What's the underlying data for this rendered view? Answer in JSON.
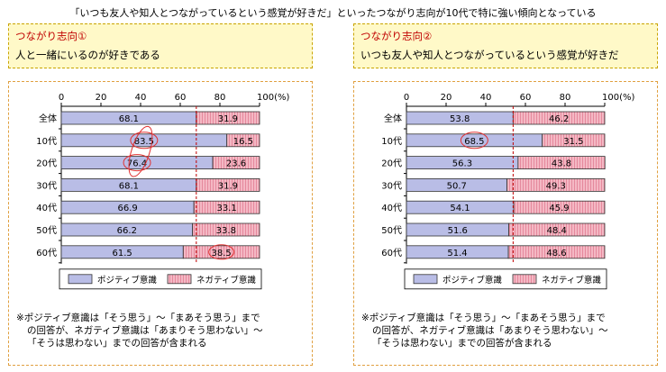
{
  "title": "「いつも友人や知人とつながっているという感覚が好きだ」といったつながり志向が10代で特に強い傾向となっている",
  "panels": [
    {
      "tag": "つながり志向①",
      "description": "人と一緒にいるのが好きである",
      "note_line1": "※ポジティブ意識は「そう思う」～「まあそう思う」まで",
      "note_line2": "の回答が、ネガティブ意識は「あまりそう思わない」～",
      "note_line3": "「そうは思わない」までの回答が含まれる"
    },
    {
      "tag": "つながり志向②",
      "description": "いつも友人や知人とつながっているという感覚が好きだ",
      "note_line1": "※ポジティブ意識は「そう思う」～「まあそう思う」まで",
      "note_line2": "の回答が、ネガティブ意識は「あまりそう思わない」～",
      "note_line3": "「そうは思わない」までの回答が含まれる"
    }
  ],
  "legend": {
    "positive": "ポジティブ意識",
    "negative": "ネガティブ意識"
  },
  "colors": {
    "positive": "#b9bde6",
    "negative": "#f4b8c4",
    "marker": "#e03030",
    "box_border": "#c9a400",
    "box_fill": "#fff9c8",
    "panel_border": "#e0a040"
  },
  "chart_data": [
    {
      "type": "bar",
      "orientation": "horizontal",
      "stacked": true,
      "x_ticks": [
        "0",
        "20",
        "40",
        "60",
        "80",
        "100(%)"
      ],
      "xlim": [
        0,
        100
      ],
      "categories": [
        "全体",
        "10代",
        "20代",
        "30代",
        "40代",
        "50代",
        "60代"
      ],
      "series": [
        {
          "name": "ポジティブ意識",
          "values": [
            68.1,
            83.5,
            76.4,
            68.1,
            66.9,
            66.2,
            61.5
          ]
        },
        {
          "name": "ネガティブ意識",
          "values": [
            31.9,
            16.5,
            23.6,
            31.9,
            33.1,
            33.8,
            38.5
          ]
        }
      ],
      "reference_line": 68.1,
      "highlighted": [
        {
          "category": "10代",
          "series": "ポジティブ意識"
        },
        {
          "category": "20代",
          "series": "ポジティブ意識"
        },
        {
          "category": "60代",
          "series": "ネガティブ意識"
        }
      ]
    },
    {
      "type": "bar",
      "orientation": "horizontal",
      "stacked": true,
      "x_ticks": [
        "0",
        "20",
        "40",
        "60",
        "80",
        "100(%)"
      ],
      "xlim": [
        0,
        100
      ],
      "categories": [
        "全体",
        "10代",
        "20代",
        "30代",
        "40代",
        "50代",
        "60代"
      ],
      "series": [
        {
          "name": "ポジティブ意識",
          "values": [
            53.8,
            68.5,
            56.3,
            50.7,
            54.1,
            51.6,
            51.4
          ]
        },
        {
          "name": "ネガティブ意識",
          "values": [
            46.2,
            31.5,
            43.8,
            49.3,
            45.9,
            48.4,
            48.6
          ]
        }
      ],
      "reference_line": 53.8,
      "highlighted": [
        {
          "category": "10代",
          "series": "ポジティブ意識"
        }
      ]
    }
  ]
}
